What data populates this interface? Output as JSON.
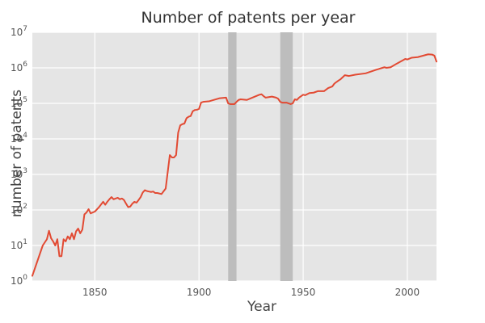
{
  "chart_data": {
    "type": "line",
    "title": "Number of patents per year",
    "xlabel": "Year",
    "ylabel": "number of patents",
    "xlim": [
      1820,
      2014
    ],
    "ylim": [
      1,
      10000000
    ],
    "yscale": "log",
    "grid": true,
    "x_ticks": [
      1850,
      1900,
      1950,
      2000
    ],
    "x_tick_labels": [
      "1850",
      "1900",
      "1950",
      "2000"
    ],
    "y_ticks": [
      1,
      10,
      100,
      1000,
      10000,
      100000,
      1000000,
      10000000
    ],
    "y_tick_labels": [
      {
        "base": "10",
        "exp": "0"
      },
      {
        "base": "10",
        "exp": "1"
      },
      {
        "base": "10",
        "exp": "2"
      },
      {
        "base": "10",
        "exp": "3"
      },
      {
        "base": "10",
        "exp": "4"
      },
      {
        "base": "10",
        "exp": "5"
      },
      {
        "base": "10",
        "exp": "6"
      },
      {
        "base": "10",
        "exp": "7"
      }
    ],
    "shaded_spans": [
      {
        "x0": 1914,
        "x1": 1918
      },
      {
        "x0": 1939,
        "x1": 1945
      }
    ],
    "series": [
      {
        "color": "#e24a33",
        "x": [
          1820,
          1825,
          1827,
          1828,
          1829,
          1830,
          1831,
          1832,
          1833,
          1834,
          1835,
          1836,
          1837,
          1838,
          1839,
          1840,
          1841,
          1842,
          1843,
          1844,
          1845,
          1846,
          1847,
          1848,
          1850,
          1852,
          1854,
          1855,
          1856,
          1857,
          1858,
          1859,
          1860,
          1861,
          1862,
          1863,
          1864,
          1865,
          1866,
          1867,
          1868,
          1869,
          1870,
          1871,
          1872,
          1873,
          1874,
          1875,
          1876,
          1877,
          1878,
          1879,
          1880,
          1882,
          1884,
          1886,
          1887,
          1888,
          1889,
          1890,
          1891,
          1892,
          1893,
          1894,
          1895,
          1896,
          1897,
          1898,
          1899,
          1900,
          1901,
          1902,
          1905,
          1910,
          1913,
          1914,
          1915,
          1917,
          1918,
          1919,
          1920,
          1923,
          1925,
          1929,
          1930,
          1931,
          1932,
          1935,
          1937,
          1938,
          1939,
          1940,
          1942,
          1944,
          1945,
          1946,
          1947,
          1948,
          1950,
          1951,
          1953,
          1955,
          1957,
          1960,
          1962,
          1964,
          1965,
          1966,
          1967,
          1968,
          1970,
          1972,
          1975,
          1980,
          1985,
          1989,
          1990,
          1992,
          1995,
          1999,
          2000,
          2002,
          2005,
          2010,
          2012,
          2013,
          2014
        ],
        "y": [
          1.4,
          10,
          15,
          26,
          16,
          13,
          10,
          15,
          5,
          5,
          15,
          13,
          18,
          15,
          22,
          15,
          25,
          30,
          22,
          28,
          75,
          85,
          105,
          80,
          90,
          120,
          170,
          140,
          170,
          200,
          230,
          200,
          210,
          220,
          200,
          210,
          190,
          150,
          120,
          125,
          150,
          170,
          160,
          190,
          230,
          310,
          360,
          340,
          330,
          320,
          330,
          300,
          300,
          280,
          400,
          3500,
          3000,
          3000,
          3500,
          15000,
          24000,
          26000,
          27000,
          38000,
          42000,
          44000,
          60000,
          65000,
          66000,
          70000,
          105000,
          110000,
          115000,
          140000,
          145000,
          100000,
          95000,
          95000,
          110000,
          125000,
          130000,
          125000,
          140000,
          175000,
          180000,
          160000,
          145000,
          155000,
          145000,
          135000,
          110000,
          105000,
          105000,
          95000,
          100000,
          130000,
          125000,
          145000,
          175000,
          170000,
          195000,
          200000,
          220000,
          220000,
          270000,
          300000,
          360000,
          400000,
          440000,
          480000,
          620000,
          590000,
          640000,
          700000,
          880000,
          1040000,
          1000000,
          1040000,
          1320000,
          1780000,
          1720000,
          1920000,
          2000000,
          2400000,
          2350000,
          2200000,
          1500000
        ]
      }
    ]
  }
}
